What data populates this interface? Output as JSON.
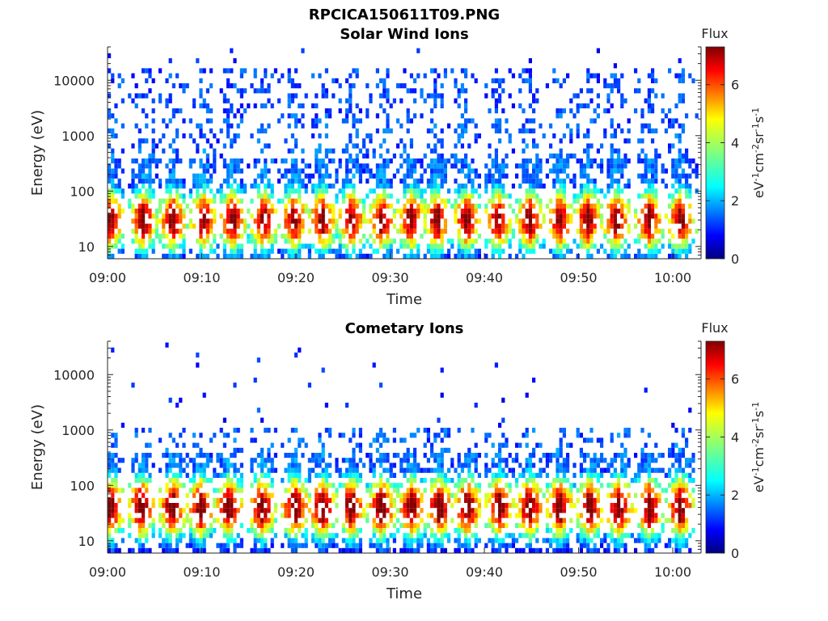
{
  "figure_title": "RPCICA150611T09.PNG",
  "chart_data": [
    {
      "type": "heatmap",
      "title": "Solar Wind Ions",
      "xlabel": "Time",
      "ylabel": "Energy (eV)",
      "x_tick_labels": [
        "09:00",
        "09:10",
        "09:20",
        "09:30",
        "09:40",
        "09:50",
        "10:00"
      ],
      "x_ticks_minutes": [
        0,
        10,
        20,
        30,
        40,
        50,
        60
      ],
      "xlim_minutes": [
        0,
        63
      ],
      "y_scale": "log",
      "ylim": [
        6,
        40000
      ],
      "y_tick_labels": [
        "10",
        "100",
        "1000",
        "10000"
      ],
      "y_ticks": [
        10,
        100,
        1000,
        10000
      ],
      "colorbar": {
        "label": "Flux",
        "unit": "eV-1cm-2sr-1s-1",
        "range": [
          0,
          7.3
        ],
        "tick_labels": [
          "0",
          "2",
          "4",
          "6"
        ],
        "ticks": [
          0,
          2,
          4,
          6
        ]
      },
      "bursts_minutes": [
        0.3,
        3.8,
        6.9,
        10.2,
        13.3,
        16.6,
        19.8,
        22.8,
        25.9,
        29.1,
        32.2,
        35.0,
        38.1,
        41.5,
        44.8,
        48.0,
        51.0,
        54.0,
        57.5,
        60.8
      ],
      "high_energy_cap_eV": 15000,
      "low_energy_peak_eV": 30,
      "peak_flux": 6.8
    },
    {
      "type": "heatmap",
      "title": "Cometary Ions",
      "xlabel": "Time",
      "ylabel": "Energy (eV)",
      "x_tick_labels": [
        "09:00",
        "09:10",
        "09:20",
        "09:30",
        "09:40",
        "09:50",
        "10:00"
      ],
      "x_ticks_minutes": [
        0,
        10,
        20,
        30,
        40,
        50,
        60
      ],
      "xlim_minutes": [
        0,
        63
      ],
      "y_scale": "log",
      "ylim": [
        6,
        40000
      ],
      "y_tick_labels": [
        "10",
        "100",
        "1000",
        "10000"
      ],
      "y_ticks": [
        10,
        100,
        1000,
        10000
      ],
      "colorbar": {
        "label": "Flux",
        "unit": "eV-1cm-2sr-1s-1",
        "range": [
          0,
          7.3
        ],
        "tick_labels": [
          "0",
          "2",
          "4",
          "6"
        ],
        "ticks": [
          0,
          2,
          4,
          6
        ]
      },
      "bursts_minutes": [
        0.3,
        3.6,
        6.9,
        9.9,
        12.9,
        16.4,
        19.9,
        22.8,
        25.9,
        29.1,
        32.3,
        35.2,
        38.2,
        41.6,
        44.8,
        48.0,
        51.2,
        54.3,
        57.5,
        60.8
      ],
      "high_energy_cap_eV": 1200,
      "low_energy_peak_eV": 40,
      "peak_flux": 7.1
    }
  ],
  "colors": {
    "jet": [
      "#00007f",
      "#0000ff",
      "#007fff",
      "#00ffff",
      "#7fff7f",
      "#ffff00",
      "#ff7f00",
      "#ff0000",
      "#7f0000"
    ]
  }
}
